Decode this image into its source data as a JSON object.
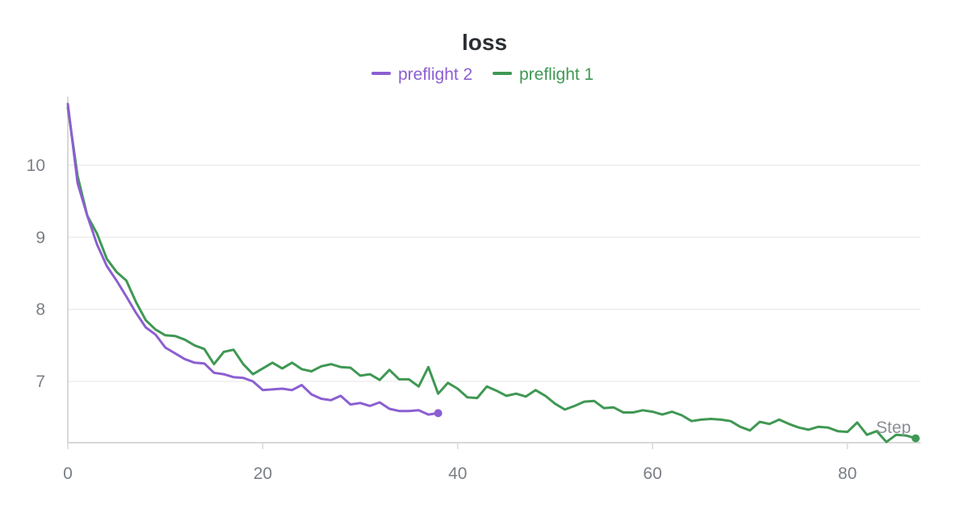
{
  "chart_data": {
    "type": "line",
    "title": "loss",
    "xlabel": "Step",
    "ylabel": "",
    "xlim": [
      0,
      87.5
    ],
    "ylim": [
      6.15,
      10.95
    ],
    "x_ticks": [
      0,
      20,
      40,
      60,
      80
    ],
    "y_ticks": [
      7,
      8,
      9,
      10
    ],
    "grid": "horizontal",
    "legend_placement": "top-center",
    "series": [
      {
        "name": "preflight 2",
        "color": "#8b5fd1",
        "values": [
          [
            0,
            10.85
          ],
          [
            1,
            9.75
          ],
          [
            2,
            9.3
          ],
          [
            3,
            8.9
          ],
          [
            4,
            8.6
          ],
          [
            5,
            8.4
          ],
          [
            6,
            8.18
          ],
          [
            7,
            7.95
          ],
          [
            8,
            7.75
          ],
          [
            9,
            7.65
          ],
          [
            10,
            7.47
          ],
          [
            11,
            7.39
          ],
          [
            12,
            7.31
          ],
          [
            13,
            7.26
          ],
          [
            14,
            7.25
          ],
          [
            15,
            7.12
          ],
          [
            16,
            7.1
          ],
          [
            17,
            7.06
          ],
          [
            18,
            7.05
          ],
          [
            19,
            7.0
          ],
          [
            20,
            6.88
          ],
          [
            21,
            6.89
          ],
          [
            22,
            6.9
          ],
          [
            23,
            6.88
          ],
          [
            24,
            6.95
          ],
          [
            25,
            6.82
          ],
          [
            26,
            6.76
          ],
          [
            27,
            6.74
          ],
          [
            28,
            6.8
          ],
          [
            29,
            6.68
          ],
          [
            30,
            6.7
          ],
          [
            31,
            6.66
          ],
          [
            32,
            6.71
          ],
          [
            33,
            6.62
          ],
          [
            34,
            6.59
          ],
          [
            35,
            6.59
          ],
          [
            36,
            6.6
          ],
          [
            37,
            6.54
          ],
          [
            38,
            6.56
          ]
        ]
      },
      {
        "name": "preflight 1",
        "color": "#3f9853",
        "values": [
          [
            0,
            10.8
          ],
          [
            1,
            9.85
          ],
          [
            2,
            9.3
          ],
          [
            3,
            9.05
          ],
          [
            4,
            8.7
          ],
          [
            5,
            8.52
          ],
          [
            6,
            8.4
          ],
          [
            7,
            8.1
          ],
          [
            8,
            7.85
          ],
          [
            9,
            7.72
          ],
          [
            10,
            7.64
          ],
          [
            11,
            7.63
          ],
          [
            12,
            7.58
          ],
          [
            13,
            7.5
          ],
          [
            14,
            7.45
          ],
          [
            15,
            7.24
          ],
          [
            16,
            7.41
          ],
          [
            17,
            7.44
          ],
          [
            18,
            7.24
          ],
          [
            19,
            7.1
          ],
          [
            20,
            7.18
          ],
          [
            21,
            7.26
          ],
          [
            22,
            7.18
          ],
          [
            23,
            7.26
          ],
          [
            24,
            7.17
          ],
          [
            25,
            7.14
          ],
          [
            26,
            7.21
          ],
          [
            27,
            7.24
          ],
          [
            28,
            7.2
          ],
          [
            29,
            7.19
          ],
          [
            30,
            7.08
          ],
          [
            31,
            7.1
          ],
          [
            32,
            7.02
          ],
          [
            33,
            7.16
          ],
          [
            34,
            7.03
          ],
          [
            35,
            7.03
          ],
          [
            36,
            6.93
          ],
          [
            37,
            7.2
          ],
          [
            38,
            6.83
          ],
          [
            39,
            6.98
          ],
          [
            40,
            6.9
          ],
          [
            41,
            6.78
          ],
          [
            42,
            6.77
          ],
          [
            43,
            6.93
          ],
          [
            44,
            6.87
          ],
          [
            45,
            6.8
          ],
          [
            46,
            6.83
          ],
          [
            47,
            6.79
          ],
          [
            48,
            6.88
          ],
          [
            49,
            6.8
          ],
          [
            50,
            6.69
          ],
          [
            51,
            6.61
          ],
          [
            52,
            6.66
          ],
          [
            53,
            6.72
          ],
          [
            54,
            6.73
          ],
          [
            55,
            6.63
          ],
          [
            56,
            6.64
          ],
          [
            57,
            6.57
          ],
          [
            58,
            6.57
          ],
          [
            59,
            6.6
          ],
          [
            60,
            6.58
          ],
          [
            61,
            6.54
          ],
          [
            62,
            6.58
          ],
          [
            63,
            6.53
          ],
          [
            64,
            6.45
          ],
          [
            65,
            6.47
          ],
          [
            66,
            6.48
          ],
          [
            67,
            6.47
          ],
          [
            68,
            6.45
          ],
          [
            69,
            6.37
          ],
          [
            70,
            6.32
          ],
          [
            71,
            6.44
          ],
          [
            72,
            6.41
          ],
          [
            73,
            6.47
          ],
          [
            74,
            6.41
          ],
          [
            75,
            6.36
          ],
          [
            76,
            6.33
          ],
          [
            77,
            6.37
          ],
          [
            78,
            6.36
          ],
          [
            79,
            6.31
          ],
          [
            80,
            6.3
          ],
          [
            81,
            6.43
          ],
          [
            82,
            6.26
          ],
          [
            83,
            6.31
          ],
          [
            84,
            6.16
          ],
          [
            85,
            6.26
          ],
          [
            86,
            6.25
          ],
          [
            87,
            6.21
          ]
        ]
      }
    ]
  }
}
